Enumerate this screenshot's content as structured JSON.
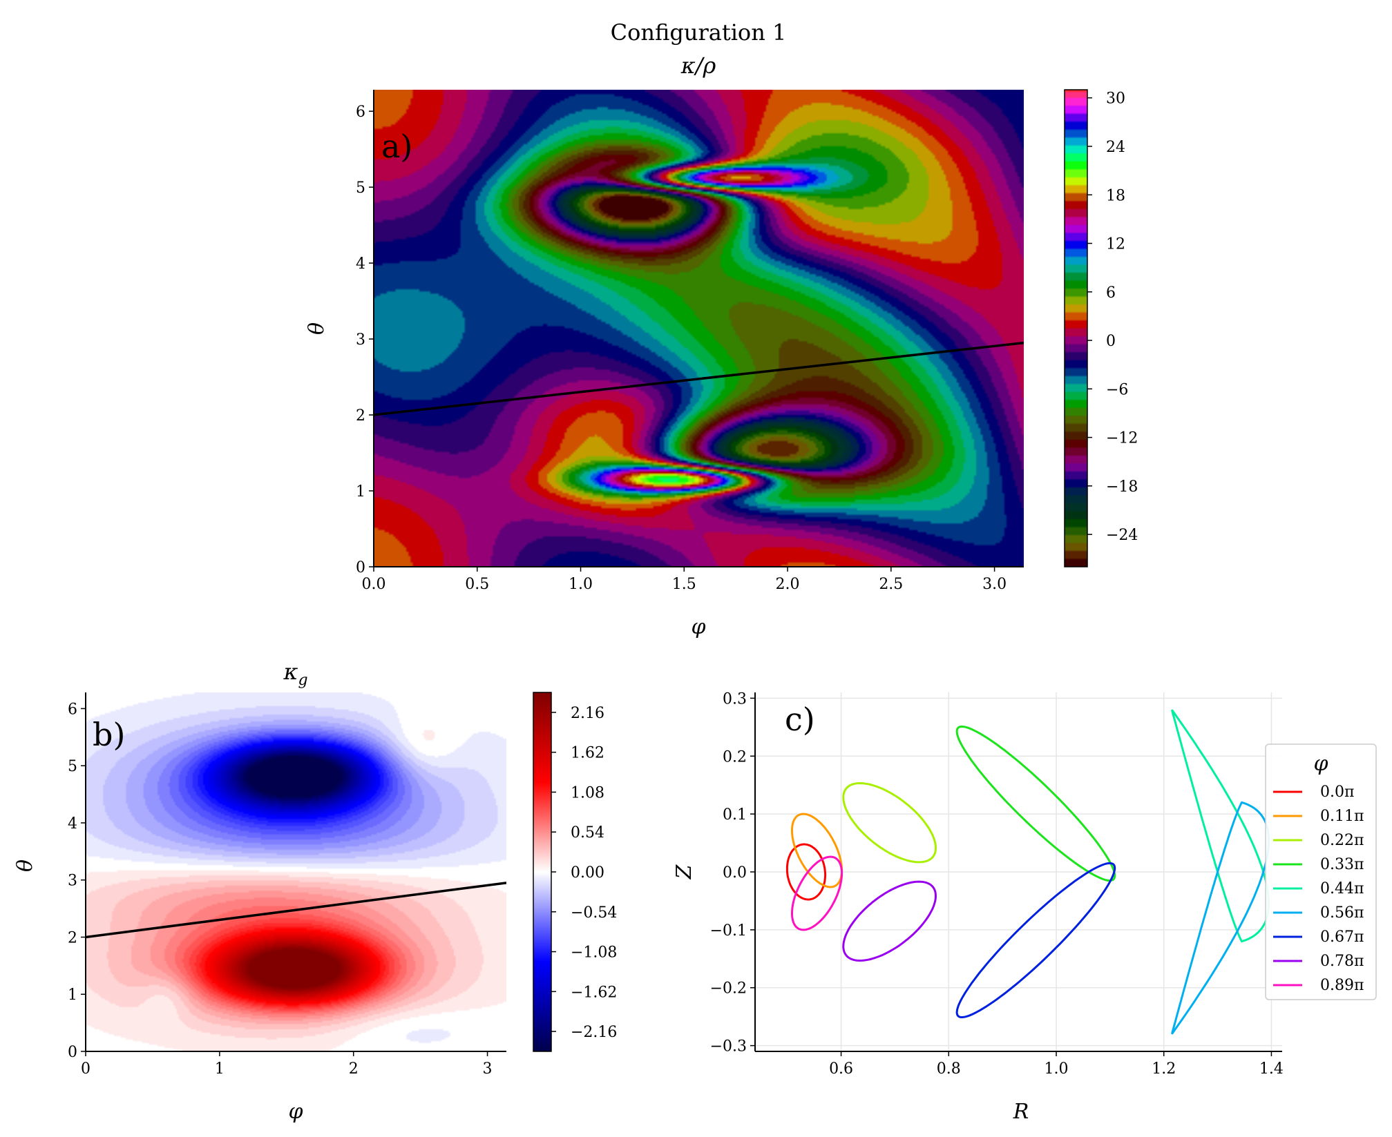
{
  "figure": {
    "title": "Configuration 1"
  },
  "chart_data": [
    {
      "id": "a",
      "type": "heatmap",
      "panel_label": "a)",
      "title": "κ/ρ",
      "xlabel": "φ",
      "ylabel": "θ",
      "xlim": [
        0,
        3.1416
      ],
      "ylim": [
        0,
        6.2832
      ],
      "xticks": [
        "0.0",
        "0.5",
        "1.0",
        "1.5",
        "2.0",
        "2.5",
        "3.0"
      ],
      "yticks": [
        "0",
        "1",
        "2",
        "3",
        "4",
        "5",
        "6"
      ],
      "colormap": "cyclic rainbow (gist_ncar-like), discrete contour levels",
      "colorbar": {
        "range": [
          -28,
          31
        ],
        "ticks": [
          "30",
          "24",
          "18",
          "12",
          "6",
          "0",
          "−6",
          "−12",
          "−18",
          "−24"
        ],
        "tick_values": [
          30,
          24,
          18,
          12,
          6,
          0,
          -6,
          -12,
          -18,
          -24
        ]
      },
      "line": {
        "x": [
          0,
          3.1416
        ],
        "y": [
          2.0,
          2.95
        ],
        "color": "#000000"
      }
    },
    {
      "id": "b",
      "type": "heatmap",
      "panel_label": "b)",
      "title": "κ_g",
      "xlabel": "φ",
      "ylabel": "θ",
      "xlim": [
        0,
        3.1416
      ],
      "ylim": [
        0,
        6.2832
      ],
      "xticks": [
        "0",
        "1",
        "2",
        "3"
      ],
      "yticks": [
        "0",
        "1",
        "2",
        "3",
        "4",
        "5",
        "6"
      ],
      "colormap": "seismic (blue-white-red)",
      "colorbar": {
        "range": [
          -2.43,
          2.43
        ],
        "ticks": [
          "2.16",
          "1.62",
          "1.08",
          "0.54",
          "0.00",
          "−0.54",
          "−1.08",
          "−1.62",
          "−2.16"
        ],
        "tick_values": [
          2.16,
          1.62,
          1.08,
          0.54,
          0.0,
          -0.54,
          -1.08,
          -1.62,
          -2.16
        ]
      },
      "extrema": [
        {
          "phi": 1.57,
          "theta": 1.4,
          "value": 2.4
        },
        {
          "phi": 1.57,
          "theta": 4.85,
          "value": -2.4
        }
      ],
      "line": {
        "x": [
          0,
          3.1416
        ],
        "y": [
          2.0,
          2.95
        ],
        "color": "#000000"
      }
    },
    {
      "id": "c",
      "type": "line",
      "panel_label": "c)",
      "xlabel": "R",
      "ylabel": "Z",
      "xlim": [
        0.44,
        1.42
      ],
      "ylim": [
        -0.31,
        0.31
      ],
      "xticks": [
        "0.6",
        "0.8",
        "1.0",
        "1.2",
        "1.4"
      ],
      "yticks": [
        "0.3",
        "0.2",
        "0.1",
        "0.0",
        "−0.1",
        "−0.2",
        "−0.3"
      ],
      "grid": true,
      "legend": {
        "title": "φ",
        "placement": "right"
      },
      "series": [
        {
          "name": "0.0π",
          "color": "#ff0000",
          "shape": "ellipse",
          "cx": 0.535,
          "cz": 0.0,
          "a": 0.048,
          "b": 0.035,
          "tilt_deg": -80
        },
        {
          "name": "0.11π",
          "color": "#ff9a00",
          "shape": "ellipse",
          "cx": 0.555,
          "cz": 0.037,
          "a": 0.07,
          "b": 0.035,
          "tilt_deg": -60
        },
        {
          "name": "0.22π",
          "color": "#a8f000",
          "shape": "ellipse",
          "cx": 0.69,
          "cz": 0.085,
          "a": 0.1,
          "b": 0.045,
          "tilt_deg": -35
        },
        {
          "name": "0.33π",
          "color": "#1be41b",
          "shape": "ellipse",
          "cx": 0.962,
          "cz": 0.118,
          "a": 0.195,
          "b": 0.035,
          "tilt_deg": -42
        },
        {
          "name": "0.44π",
          "color": "#00f0a0",
          "shape": "crescent",
          "tips": [
            [
              1.215,
              0.28
            ],
            [
              1.345,
              -0.12
            ]
          ],
          "inner": [
            1.3,
            0.0
          ],
          "outer": [
            1.385,
            0.0
          ]
        },
        {
          "name": "0.56π",
          "color": "#00aff0",
          "shape": "crescent",
          "tips": [
            [
              1.215,
              -0.28
            ],
            [
              1.345,
              0.12
            ]
          ],
          "inner": [
            1.3,
            0.0
          ],
          "outer": [
            1.385,
            0.0
          ]
        },
        {
          "name": "0.67π",
          "color": "#0020e0",
          "shape": "ellipse",
          "cx": 0.962,
          "cz": -0.118,
          "a": 0.195,
          "b": 0.035,
          "tilt_deg": 42
        },
        {
          "name": "0.78π",
          "color": "#9a00f0",
          "shape": "ellipse",
          "cx": 0.69,
          "cz": -0.085,
          "a": 0.1,
          "b": 0.045,
          "tilt_deg": 35
        },
        {
          "name": "0.89π",
          "color": "#ff10c0",
          "shape": "ellipse",
          "cx": 0.555,
          "cz": -0.037,
          "a": 0.07,
          "b": 0.035,
          "tilt_deg": 60
        }
      ]
    }
  ]
}
